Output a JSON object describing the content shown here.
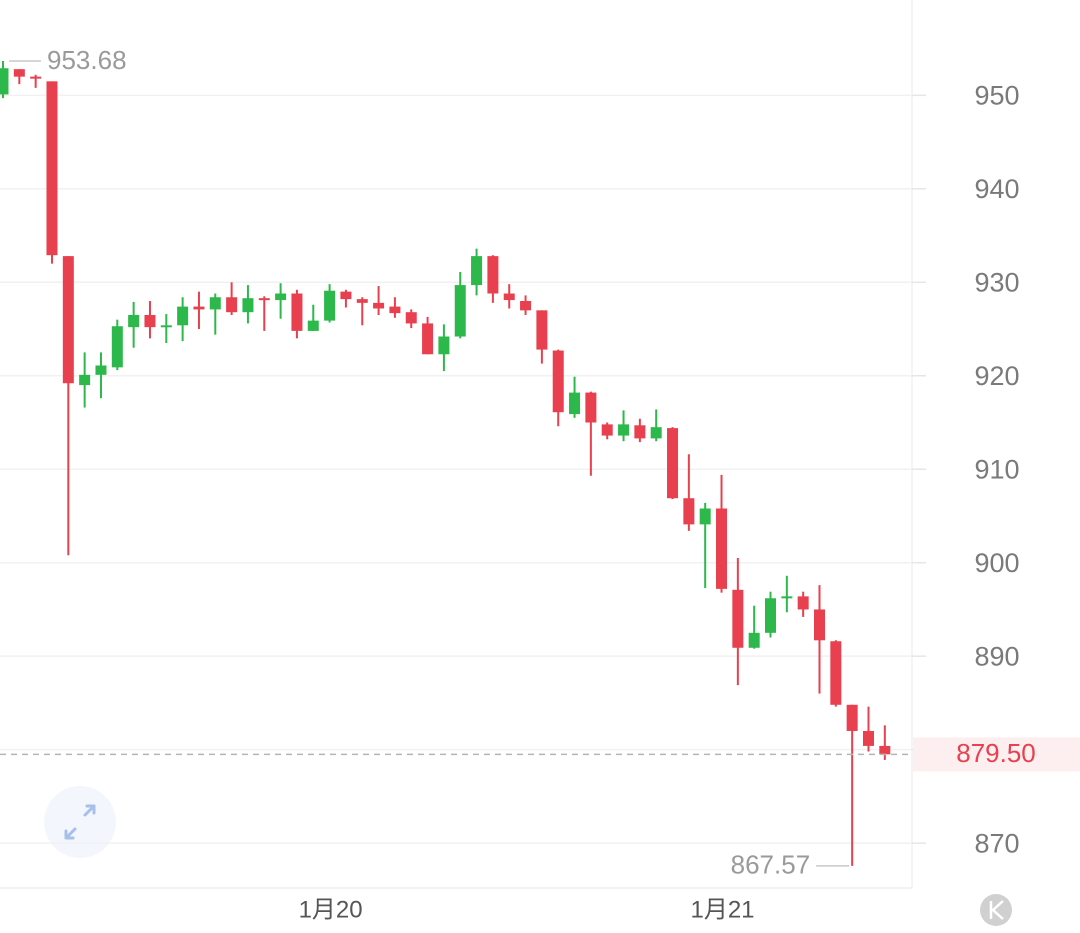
{
  "chart_data": {
    "type": "candlestick",
    "categories": [
      null,
      null,
      null,
      null,
      null,
      null,
      null,
      null,
      null,
      null,
      null,
      null,
      null,
      null,
      null,
      null,
      null,
      null,
      null,
      null,
      "1月20",
      null,
      null,
      null,
      null,
      null,
      null,
      null,
      null,
      null,
      null,
      null,
      null,
      null,
      null,
      null,
      null,
      null,
      null,
      null,
      null,
      null,
      null,
      null,
      "1月21",
      null,
      null,
      null,
      null,
      null,
      null,
      null,
      null,
      null,
      null
    ],
    "open": [
      950.1,
      952.8,
      952.0,
      951.5,
      932.8,
      919.0,
      920.1,
      920.9,
      925.2,
      926.5,
      925.2,
      925.4,
      927.4,
      927.1,
      928.4,
      926.8,
      928.3,
      928.1,
      928.8,
      924.8,
      925.9,
      929.0,
      928.2,
      927.8,
      927.4,
      926.8,
      925.6,
      922.3,
      924.2,
      929.7,
      932.8,
      928.8,
      928.0,
      927.0,
      922.7,
      915.9,
      918.2,
      914.8,
      913.6,
      914.7,
      913.3,
      914.4,
      906.9,
      904.1,
      905.8,
      897.1,
      890.9,
      892.5,
      896.2,
      896.4,
      895.0,
      891.6,
      884.8,
      882.0,
      880.4
    ],
    "high": [
      953.68,
      952.8,
      952.2,
      951.5,
      932.8,
      922.5,
      922.5,
      926.0,
      927.9,
      928.0,
      926.6,
      928.4,
      929.0,
      928.8,
      930.0,
      929.7,
      928.5,
      929.9,
      929.2,
      927.6,
      929.8,
      929.2,
      928.4,
      929.6,
      928.4,
      927.1,
      926.3,
      925.5,
      931.1,
      933.6,
      932.9,
      929.8,
      928.6,
      927.0,
      922.8,
      919.9,
      918.3,
      915.0,
      916.3,
      915.4,
      916.4,
      914.5,
      911.6,
      906.4,
      909.4,
      900.5,
      895.4,
      896.9,
      898.6,
      896.9,
      897.6,
      891.7,
      884.8,
      884.6,
      882.6
    ],
    "low": [
      949.7,
      951.2,
      950.8,
      932.0,
      900.8,
      916.6,
      917.6,
      920.6,
      923.0,
      924.0,
      923.5,
      923.7,
      925.0,
      924.4,
      926.5,
      925.6,
      924.8,
      926.1,
      924.0,
      924.8,
      925.7,
      927.3,
      925.4,
      926.5,
      926.2,
      925.1,
      922.3,
      920.5,
      924.0,
      928.6,
      927.8,
      927.2,
      926.5,
      921.3,
      914.6,
      915.5,
      909.3,
      913.2,
      913.0,
      912.9,
      913.0,
      906.8,
      903.4,
      897.3,
      896.8,
      886.9,
      890.8,
      892.0,
      894.7,
      894.2,
      886.0,
      884.6,
      867.57,
      879.8,
      878.9
    ],
    "close": [
      952.9,
      952.0,
      951.8,
      932.9,
      919.2,
      920.1,
      921.1,
      925.3,
      926.5,
      925.2,
      925.4,
      927.4,
      927.1,
      928.4,
      926.8,
      928.3,
      928.1,
      928.8,
      924.8,
      925.9,
      929.1,
      928.2,
      927.8,
      927.2,
      926.7,
      925.6,
      922.3,
      924.2,
      929.7,
      932.8,
      928.8,
      928.1,
      927.0,
      922.8,
      916.1,
      918.2,
      915.0,
      913.6,
      914.8,
      913.3,
      914.5,
      906.9,
      904.1,
      905.8,
      897.2,
      890.9,
      892.5,
      896.2,
      896.4,
      895.0,
      891.7,
      884.8,
      882.0,
      880.4,
      879.5
    ],
    "up_color": "#2db84b",
    "down_color": "#e8404e",
    "ylim": [
      865.2,
      960.2
    ],
    "yticks": [
      870,
      880,
      890,
      900,
      910,
      920,
      930,
      940,
      950
    ],
    "grid": true,
    "high_marker": 953.68,
    "low_marker": 867.57,
    "last_price": {
      "value": 879.5,
      "label": "879.50"
    }
  }
}
